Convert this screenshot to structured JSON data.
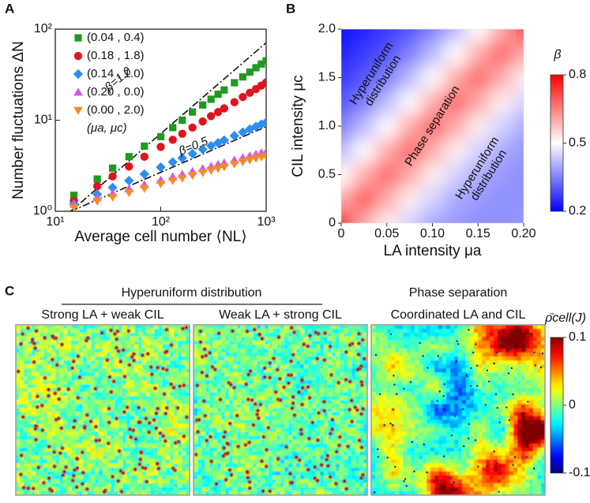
{
  "chart_data": [
    {
      "type": "scatter",
      "panel": "A",
      "xlabel": "Average cell number ⟨NL⟩",
      "ylabel": "Number fluctuations ΔN",
      "xscale": "log",
      "yscale": "log",
      "xlim": [
        10,
        1000
      ],
      "ylim": [
        1,
        100
      ],
      "xticks": [
        {
          "value": 10,
          "label": "10¹"
        },
        {
          "value": 100,
          "label": "10²"
        },
        {
          "value": 1000,
          "label": "10³"
        }
      ],
      "yticks": [
        {
          "value": 1,
          "label": "10⁰"
        },
        {
          "value": 10,
          "label": "10¹"
        },
        {
          "value": 100,
          "label": "10²"
        }
      ],
      "x": [
        15,
        25,
        35,
        50,
        70,
        100,
        130,
        160,
        200,
        250,
        300,
        350,
        400,
        500,
        600,
        700,
        800,
        900,
        1000
      ],
      "series": [
        {
          "name": "(0.04 , 0.4)",
          "marker": "square",
          "color": "#1f9a1f",
          "values": [
            1.5,
            2.26,
            2.98,
            3.98,
            5.2,
            6.6,
            8.3,
            10,
            12.3,
            14.7,
            17,
            19.3,
            21.5,
            25.8,
            29.9,
            33.8,
            37.7,
            41.4,
            45
          ]
        },
        {
          "name": "(0.18 , 1.8)",
          "marker": "circle",
          "color": "#e0141e",
          "values": [
            1.3,
            1.89,
            2.42,
            3.1,
            3.97,
            5.1,
            6.1,
            7.1,
            8.3,
            9.7,
            11.1,
            12.3,
            13.5,
            15.8,
            18,
            20,
            22,
            24,
            26
          ]
        },
        {
          "name": "(0.14 , 1.0)",
          "marker": "diamond",
          "color": "#2b8ef0",
          "values": [
            1.2,
            1.54,
            1.82,
            2.17,
            2.56,
            3.05,
            3.47,
            3.84,
            4.29,
            4.79,
            5.24,
            5.65,
            6.04,
            6.75,
            7.39,
            7.98,
            8.52,
            9.04,
            9.5
          ]
        },
        {
          "name": "(0.20 , 0.0)",
          "marker": "triangle-up",
          "color": "#d257ea",
          "values": [
            1.2,
            1.41,
            1.57,
            1.76,
            1.96,
            2.2,
            2.39,
            2.55,
            2.74,
            2.94,
            3.11,
            3.26,
            3.4,
            3.65,
            3.87,
            4.06,
            4.23,
            4.39,
            4.5
          ]
        },
        {
          "name": "(0.00 , 2.0)",
          "marker": "triangle-down",
          "color": "#f28c22",
          "values": [
            1.1,
            1.29,
            1.43,
            1.6,
            1.78,
            2.0,
            2.17,
            2.31,
            2.48,
            2.66,
            2.81,
            2.95,
            3.07,
            3.3,
            3.49,
            3.66,
            3.81,
            3.95,
            4.0
          ]
        }
      ],
      "legend_note": "(μa, μc)",
      "reference_lines": [
        {
          "label": "β=1.0",
          "x": [
            14,
            1000
          ],
          "values": [
            1,
            71
          ]
        },
        {
          "label": "β=0.5",
          "x": [
            14,
            1000
          ],
          "values": [
            1,
            8.5
          ]
        }
      ]
    },
    {
      "type": "heatmap",
      "panel": "B",
      "xlabel": "LA intensity μa",
      "ylabel": "CIL intensity μc",
      "xlim": [
        0,
        0.2
      ],
      "ylim": [
        0,
        2
      ],
      "xticks": [
        0,
        0.05,
        {
          "value": 0.1,
          "label": "0.10"
        },
        0.15,
        {
          "value": 0.2,
          "label": "0.20"
        }
      ],
      "yticks": [
        0,
        0.5,
        {
          "value": 1,
          "label": "1.0"
        },
        1.5,
        {
          "value": 2,
          "label": "2.0"
        }
      ],
      "x": [
        0,
        0.025,
        0.05,
        0.075,
        0.1,
        0.125,
        0.15,
        0.175,
        0.2
      ],
      "y": [
        0,
        0.25,
        0.5,
        0.75,
        1,
        1.25,
        1.5,
        1.75,
        2
      ],
      "z": [
        [
          0.8,
          0.6,
          0.52,
          0.45,
          0.4,
          0.38,
          0.37,
          0.37,
          0.38
        ],
        [
          0.6,
          0.7,
          0.6,
          0.52,
          0.45,
          0.4,
          0.38,
          0.37,
          0.37
        ],
        [
          0.5,
          0.6,
          0.68,
          0.6,
          0.52,
          0.45,
          0.4,
          0.38,
          0.37
        ],
        [
          0.42,
          0.5,
          0.6,
          0.68,
          0.6,
          0.52,
          0.45,
          0.4,
          0.38
        ],
        [
          0.35,
          0.42,
          0.5,
          0.6,
          0.68,
          0.6,
          0.52,
          0.45,
          0.4
        ],
        [
          0.3,
          0.35,
          0.42,
          0.5,
          0.6,
          0.68,
          0.6,
          0.52,
          0.45
        ],
        [
          0.27,
          0.3,
          0.35,
          0.42,
          0.5,
          0.6,
          0.68,
          0.6,
          0.52
        ],
        [
          0.24,
          0.27,
          0.3,
          0.35,
          0.42,
          0.5,
          0.6,
          0.68,
          0.6
        ],
        [
          0.22,
          0.24,
          0.27,
          0.3,
          0.35,
          0.42,
          0.5,
          0.6,
          0.72
        ]
      ],
      "colormap": "blue-white-red",
      "colorbar": {
        "title": "β",
        "lim": [
          0.2,
          0.8
        ],
        "ticks": [
          0.2,
          0.5,
          0.8
        ]
      },
      "annotations": [
        [
          "Hyperuniform",
          "distribution"
        ],
        [
          "Phase separation"
        ],
        [
          "Hyperuniform",
          "distribution"
        ]
      ]
    },
    {
      "type": "field",
      "panel": "C",
      "groups": [
        "Hyperuniform distribution",
        "Phase separation"
      ],
      "panels": [
        "Strong LA + weak CIL",
        "Weak LA + strong CIL",
        "Coordinated LA and CIL"
      ],
      "colormap": "jet",
      "colorbar": {
        "title": "ρ̄cell(J)",
        "lim": [
          -0.1,
          0.1
        ],
        "ticks": [
          0.1,
          0,
          -0.1
        ]
      }
    }
  ]
}
